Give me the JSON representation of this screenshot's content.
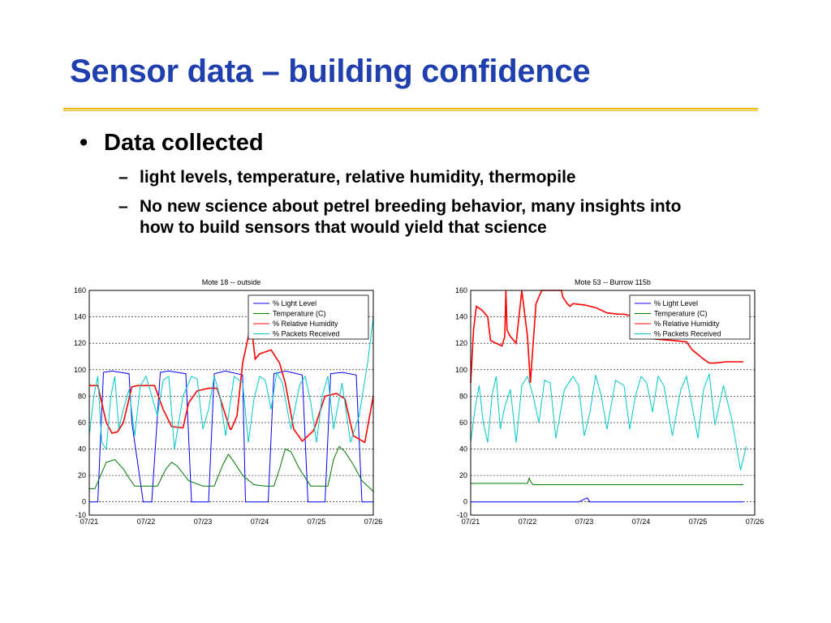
{
  "slide": {
    "title": "Sensor data – building confidence",
    "bullet": "•",
    "heading": "Data collected",
    "dash": "–",
    "sub_bullets": [
      "light levels, temperature, relative humidity, thermopile",
      "No new science about petrel breeding behavior, many insights into how to build sensors that would yield that science"
    ]
  },
  "colors": {
    "title": "#1f3fae",
    "rule": "#e8b600",
    "light": "#0000ff",
    "temperature": "#007a00",
    "humidity": "#ff0000",
    "packets": "#00c8c8"
  },
  "chart_data": [
    {
      "type": "line",
      "title": "Mote 18 -- outside",
      "x_tick_labels": [
        "07/21",
        "07/22",
        "07/23",
        "07/24",
        "07/25",
        "07/26"
      ],
      "xlim": [
        0,
        5
      ],
      "ylim": [
        -10,
        160
      ],
      "y_ticks": [
        -10,
        0,
        20,
        40,
        60,
        80,
        100,
        120,
        140,
        160
      ],
      "grid": "dashed horizontal",
      "legend_position": "top-right",
      "series": [
        {
          "name": "% Light Level",
          "color": "#0000ff",
          "x": [
            0,
            0.1,
            0.15,
            0.25,
            0.4,
            0.7,
            0.75,
            0.95,
            1.05,
            1.1,
            1.25,
            1.4,
            1.7,
            1.8,
            2.05,
            2.1,
            2.2,
            2.4,
            2.7,
            2.75,
            2.9,
            3.1,
            3.15,
            3.25,
            3.45,
            3.75,
            3.85,
            3.95,
            4.1,
            4.15,
            4.25,
            4.45,
            4.7,
            4.8,
            5
          ],
          "y": [
            0,
            0,
            0,
            98,
            99,
            97,
            60,
            0,
            0,
            0,
            98,
            99,
            97,
            0,
            0,
            0,
            97,
            99,
            96,
            0,
            0,
            0,
            0,
            97,
            99,
            96,
            0,
            0,
            0,
            0,
            97,
            98,
            96,
            0,
            0
          ]
        },
        {
          "name": "Temperature (C)",
          "color": "#007a00",
          "x": [
            0,
            0.1,
            0.2,
            0.3,
            0.45,
            0.6,
            0.7,
            0.8,
            1.0,
            1.2,
            1.35,
            1.45,
            1.55,
            1.75,
            2.0,
            2.2,
            2.35,
            2.45,
            2.55,
            2.7,
            2.9,
            3.1,
            3.25,
            3.35,
            3.45,
            3.55,
            3.7,
            3.9,
            4.05,
            4.2,
            4.3,
            4.4,
            4.5,
            4.65,
            4.8,
            5
          ],
          "y": [
            10,
            10,
            20,
            30,
            32,
            25,
            18,
            12,
            12,
            12,
            25,
            30,
            27,
            16,
            12,
            12,
            28,
            36,
            30,
            20,
            13,
            12,
            12,
            25,
            40,
            38,
            25,
            12,
            12,
            12,
            32,
            42,
            38,
            28,
            16,
            8
          ]
        },
        {
          "name": "% Relative Humidity",
          "color": "#ff0000",
          "x": [
            0,
            0.15,
            0.3,
            0.4,
            0.5,
            0.6,
            0.75,
            0.85,
            1.0,
            1.15,
            1.3,
            1.45,
            1.65,
            1.75,
            1.9,
            2.1,
            2.25,
            2.35,
            2.48,
            2.5,
            2.6,
            2.7,
            2.85,
            2.92,
            3.0,
            3.2,
            3.35,
            3.45,
            3.6,
            3.75,
            3.95,
            4.15,
            4.35,
            4.5,
            4.65,
            4.85,
            5
          ],
          "y": [
            88,
            88,
            60,
            52,
            53,
            60,
            87,
            88,
            88,
            88,
            70,
            57,
            56,
            75,
            84,
            86,
            86,
            72,
            55,
            55,
            65,
            105,
            135,
            108,
            112,
            115,
            105,
            90,
            55,
            46,
            54,
            80,
            82,
            78,
            50,
            45,
            80
          ]
        },
        {
          "name": "% Packets Received",
          "color": "#00c8c8",
          "x": [
            0,
            0.08,
            0.15,
            0.22,
            0.3,
            0.38,
            0.45,
            0.52,
            0.6,
            0.7,
            0.8,
            0.9,
            1.0,
            1.1,
            1.2,
            1.3,
            1.4,
            1.5,
            1.65,
            1.8,
            1.9,
            2.0,
            2.1,
            2.2,
            2.3,
            2.4,
            2.55,
            2.7,
            2.8,
            2.9,
            3.0,
            3.1,
            3.2,
            3.3,
            3.4,
            3.55,
            3.7,
            3.8,
            3.9,
            4.0,
            4.1,
            4.2,
            4.3,
            4.45,
            4.6,
            4.75,
            4.9,
            5
          ],
          "y": [
            50,
            80,
            95,
            45,
            40,
            80,
            95,
            55,
            70,
            85,
            50,
            88,
            95,
            80,
            65,
            92,
            95,
            40,
            80,
            95,
            93,
            55,
            70,
            95,
            80,
            50,
            95,
            90,
            45,
            78,
            95,
            92,
            70,
            98,
            90,
            55,
            88,
            95,
            75,
            45,
            80,
            95,
            55,
            90,
            45,
            65,
            105,
            140
          ]
        }
      ]
    },
    {
      "type": "line",
      "title": "Mote 53 -- Burrow 115b",
      "x_tick_labels": [
        "07/21",
        "07/22",
        "07/23",
        "07/24",
        "07/25",
        "07/26"
      ],
      "xlim": [
        0,
        5
      ],
      "ylim": [
        -10,
        160
      ],
      "y_ticks": [
        -10,
        0,
        20,
        40,
        60,
        80,
        100,
        120,
        140,
        160
      ],
      "grid": "dashed horizontal",
      "legend_position": "top-right",
      "series": [
        {
          "name": "% Light Level",
          "color": "#0000ff",
          "x": [
            0,
            1.9,
            2.0,
            2.05,
            2.1,
            4.8
          ],
          "y": [
            0,
            0,
            2,
            3,
            0,
            0
          ]
        },
        {
          "name": "Temperature (C)",
          "color": "#007a00",
          "x": [
            0,
            1.0,
            1.03,
            1.06,
            1.1,
            4.8
          ],
          "y": [
            14,
            14,
            18,
            15,
            13,
            13
          ]
        },
        {
          "name": "% Relative Humidity",
          "color": "#ff0000",
          "x": [
            0,
            0.05,
            0.1,
            0.2,
            0.3,
            0.35,
            0.45,
            0.55,
            0.6,
            0.62,
            0.64,
            0.7,
            0.8,
            0.9,
            1.0,
            1.05,
            1.15,
            1.25,
            1.35,
            1.5,
            1.6,
            1.62,
            1.7,
            1.75,
            1.8,
            2.0,
            2.2,
            2.4,
            2.6,
            2.7,
            2.9,
            3.0,
            3.02,
            3.1,
            3.3,
            3.6,
            3.8,
            3.9,
            4.1,
            4.2,
            4.3,
            4.5,
            4.6,
            4.8
          ],
          "y": [
            90,
            130,
            148,
            145,
            140,
            122,
            120,
            118,
            125,
            160,
            130,
            125,
            120,
            160,
            125,
            90,
            150,
            160,
            160,
            160,
            160,
            155,
            150,
            148,
            150,
            149,
            147,
            143,
            142,
            142,
            140,
            140,
            124,
            124,
            123,
            122,
            121,
            115,
            108,
            105,
            105,
            106,
            106,
            106
          ]
        },
        {
          "name": "% Packets Received",
          "color": "#00c8c8",
          "x": [
            0,
            0.08,
            0.15,
            0.22,
            0.3,
            0.38,
            0.45,
            0.52,
            0.6,
            0.7,
            0.8,
            0.9,
            1.0,
            1.1,
            1.2,
            1.3,
            1.4,
            1.5,
            1.65,
            1.8,
            1.9,
            2.0,
            2.1,
            2.2,
            2.3,
            2.4,
            2.55,
            2.7,
            2.8,
            2.9,
            3.0,
            3.1,
            3.2,
            3.3,
            3.4,
            3.55,
            3.7,
            3.8,
            3.9,
            4.0,
            4.1,
            4.2,
            4.3,
            4.45,
            4.6,
            4.75,
            4.85
          ],
          "y": [
            45,
            72,
            88,
            60,
            45,
            82,
            95,
            55,
            72,
            85,
            45,
            88,
            95,
            80,
            60,
            92,
            90,
            48,
            85,
            95,
            88,
            50,
            68,
            96,
            80,
            55,
            92,
            88,
            55,
            80,
            95,
            90,
            68,
            95,
            88,
            50,
            85,
            95,
            72,
            48,
            85,
            97,
            58,
            88,
            62,
            24,
            42
          ]
        }
      ]
    }
  ]
}
